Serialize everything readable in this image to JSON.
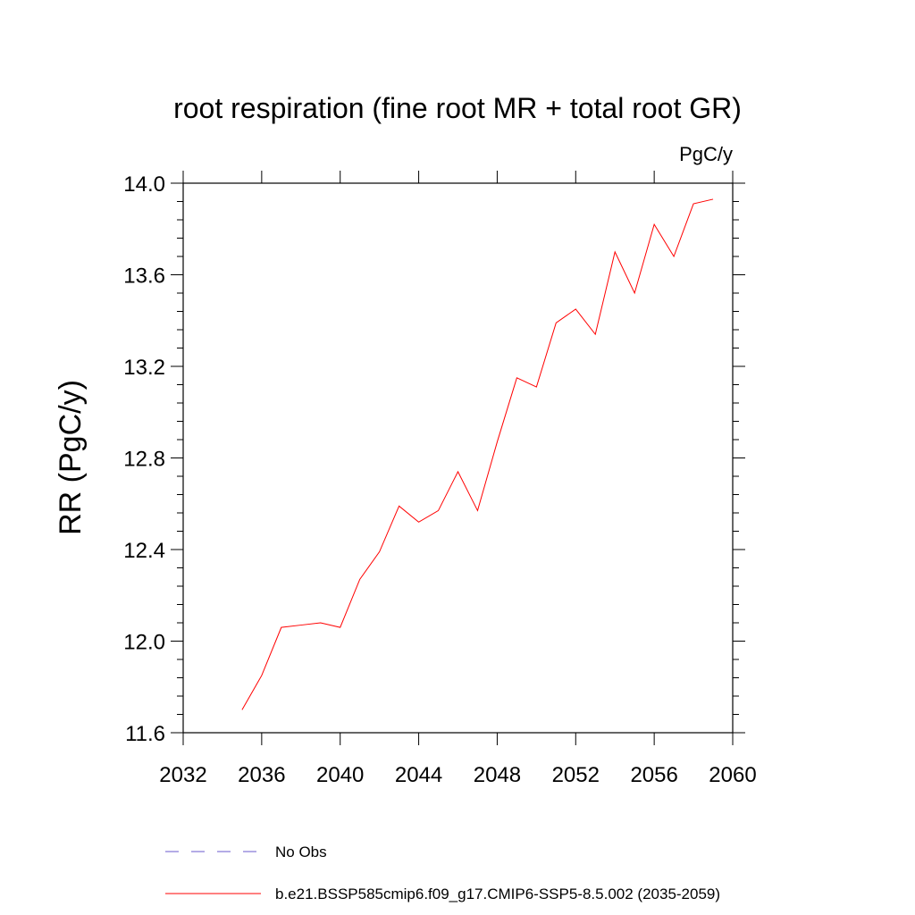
{
  "chart_data": {
    "type": "line",
    "title": "root respiration (fine root MR + total root GR)",
    "units": "PgC/y",
    "xlabel": "",
    "ylabel": "RR  (PgC/y)",
    "xlim": [
      2032,
      2060
    ],
    "ylim": [
      11.6,
      14.0
    ],
    "xticks": [
      2032,
      2036,
      2040,
      2044,
      2048,
      2052,
      2056,
      2060
    ],
    "xtick_labels": [
      "2032",
      "2036",
      "2040",
      "2044",
      "2048",
      "2052",
      "2056",
      "2060"
    ],
    "yticks": [
      11.6,
      12.0,
      12.4,
      12.8,
      13.2,
      13.6,
      14.0
    ],
    "ytick_labels": [
      "11.6",
      "12.0",
      "12.4",
      "12.8",
      "13.2",
      "13.6",
      "14.0"
    ],
    "grid": false,
    "legend_position": "bottom",
    "series": [
      {
        "name": "No Obs",
        "color": "#6a5acd",
        "dash": "dashed",
        "x": [],
        "y": []
      },
      {
        "name": "b.e21.BSSP585cmip6.f09_g17.CMIP6-SSP5-8.5.002 (2035-2059)",
        "color": "#ff0000",
        "dash": "solid",
        "x": [
          2035,
          2036,
          2037,
          2038,
          2039,
          2040,
          2041,
          2042,
          2043,
          2044,
          2045,
          2046,
          2047,
          2048,
          2049,
          2050,
          2051,
          2052,
          2053,
          2054,
          2055,
          2056,
          2057,
          2058,
          2059
        ],
        "y": [
          11.7,
          11.85,
          12.06,
          12.07,
          12.08,
          12.06,
          12.27,
          12.39,
          12.59,
          12.52,
          12.57,
          12.74,
          12.57,
          12.87,
          13.15,
          13.11,
          13.39,
          13.45,
          13.34,
          13.7,
          13.52,
          13.82,
          13.68,
          13.91,
          13.93
        ]
      }
    ]
  }
}
